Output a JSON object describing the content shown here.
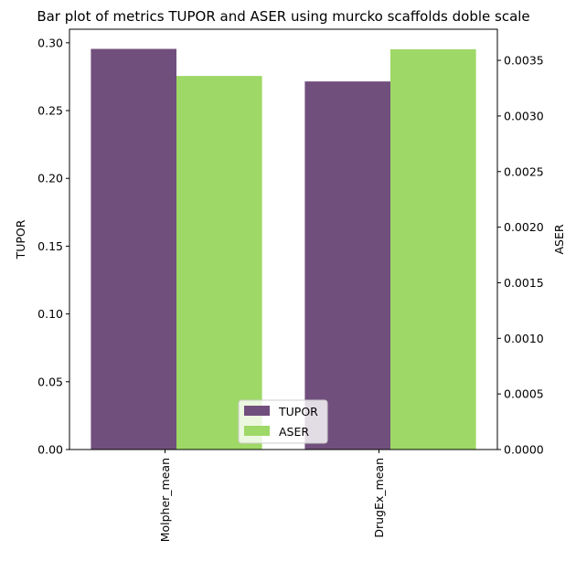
{
  "chart_data": {
    "type": "bar",
    "title": "Bar plot of metrics TUPOR and ASER using murcko scaffolds doble scale",
    "categories": [
      "Molpher_mean",
      "DrugEx_mean"
    ],
    "series": [
      {
        "name": "TUPOR",
        "axis": "left",
        "color": "#714f7d",
        "values": [
          0.2955,
          0.2715
        ]
      },
      {
        "name": "ASER",
        "axis": "right",
        "color": "#9ed866",
        "values": [
          0.00336,
          0.0036
        ]
      }
    ],
    "ylabel": "TUPOR",
    "ylabel_right": "ASER",
    "ylim": [
      0,
      0.31
    ],
    "ylim_right": [
      0,
      0.00378
    ],
    "yticks": [
      "0.00",
      "0.05",
      "0.10",
      "0.15",
      "0.20",
      "0.25",
      "0.30"
    ],
    "yticks_right": [
      "0.0000",
      "0.0005",
      "0.0010",
      "0.0015",
      "0.0020",
      "0.0025",
      "0.0030",
      "0.0035"
    ],
    "legend_position": "bottom-center",
    "grid": false
  }
}
